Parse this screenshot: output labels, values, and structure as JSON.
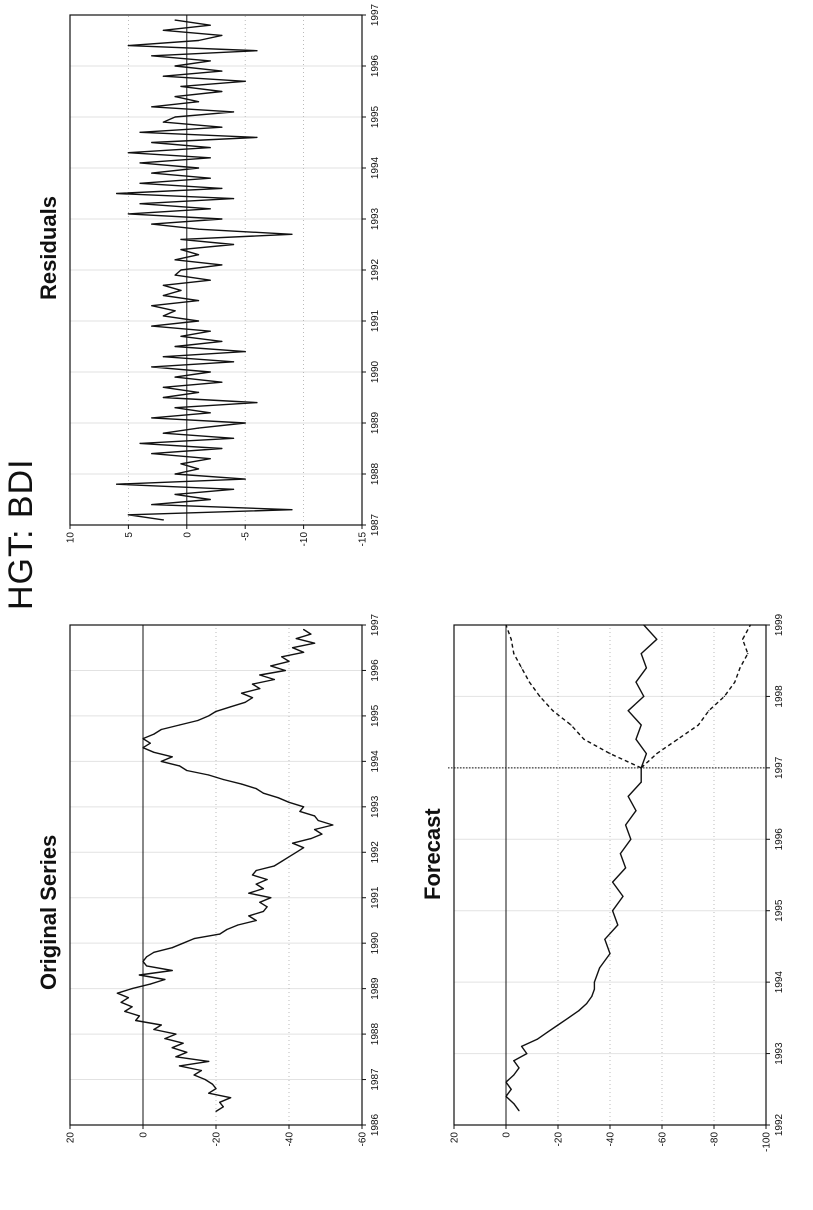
{
  "page": {
    "figure_title": "HGT: BDI",
    "orientation": "rotated -90 degrees"
  },
  "chart_data": [
    {
      "id": "original",
      "type": "line",
      "title": "Original Series",
      "ylim": [
        -60,
        20
      ],
      "yticks": [
        -60,
        -40,
        -20,
        0,
        20
      ],
      "ytick_labels": [
        "-60",
        "-40",
        "-20",
        "0",
        "20"
      ],
      "xlim": [
        1986,
        1997
      ],
      "xticks": [
        1986,
        1987,
        1988,
        1989,
        1990,
        1991,
        1992,
        1993,
        1994,
        1995,
        1996,
        1997
      ],
      "xtick_labels": [
        "1986",
        "1987",
        "1988",
        "1989",
        "1990",
        "1991",
        "1992",
        "1993",
        "1994",
        "1995",
        "1996",
        "1997"
      ],
      "hline": 0,
      "series": [
        {
          "color": "#111111",
          "dash": "",
          "x": [
            1986.3,
            1986.4,
            1986.5,
            1986.6,
            1986.7,
            1986.8,
            1986.9,
            1987.0,
            1987.1,
            1987.2,
            1987.3,
            1987.4,
            1987.5,
            1987.6,
            1987.7,
            1987.8,
            1987.9,
            1988.0,
            1988.1,
            1988.2,
            1988.3,
            1988.4,
            1988.5,
            1988.6,
            1988.7,
            1988.8,
            1988.9,
            1989.0,
            1989.1,
            1989.2,
            1989.3,
            1989.4,
            1989.5,
            1989.6,
            1989.7,
            1989.8,
            1989.9,
            1990.0,
            1990.1,
            1990.2,
            1990.3,
            1990.4,
            1990.5,
            1990.6,
            1990.7,
            1990.8,
            1990.9,
            1991.0,
            1991.1,
            1991.2,
            1991.3,
            1991.4,
            1991.5,
            1991.6,
            1991.7,
            1991.8,
            1991.9,
            1992.0,
            1992.1,
            1992.2,
            1992.3,
            1992.4,
            1992.5,
            1992.6,
            1992.7,
            1992.8,
            1992.9,
            1993.0,
            1993.1,
            1993.2,
            1993.3,
            1993.4,
            1993.5,
            1993.6,
            1993.7,
            1993.8,
            1993.9,
            1994.0,
            1994.1,
            1994.2,
            1994.3,
            1994.4,
            1994.5,
            1994.6,
            1994.7,
            1994.8,
            1994.9,
            1995.0,
            1995.1,
            1995.2,
            1995.3,
            1995.4,
            1995.5,
            1995.6,
            1995.7,
            1995.8,
            1995.9,
            1996.0,
            1996.1,
            1996.2,
            1996.3,
            1996.4,
            1996.5,
            1996.6,
            1996.7,
            1996.8,
            1996.9
          ],
          "y": [
            -20,
            -22,
            -21,
            -24,
            -18,
            -20,
            -19,
            -17,
            -14,
            -16,
            -10,
            -18,
            -9,
            -12,
            -8,
            -11,
            -6,
            -9,
            -3,
            -5,
            2,
            1,
            5,
            3,
            6,
            4,
            7,
            3,
            -2,
            -6,
            1,
            -8,
            -1,
            0,
            -1,
            -3,
            -8,
            -11,
            -14,
            -21,
            -23,
            -26,
            -31,
            -29,
            -33,
            -34,
            -32,
            -35,
            -29,
            -33,
            -31,
            -34,
            -30,
            -31,
            -36,
            -38,
            -40,
            -42,
            -44,
            -41,
            -46,
            -49,
            -47,
            -52,
            -48,
            -47,
            -43,
            -44,
            -40,
            -37,
            -33,
            -31,
            -27,
            -22,
            -18,
            -12,
            -10,
            -5,
            -8,
            -3,
            0,
            -2,
            0,
            -3,
            -5,
            -10,
            -15,
            -18,
            -20,
            -24,
            -28,
            -30,
            -27,
            -32,
            -30,
            -36,
            -32,
            -39,
            -35,
            -40,
            -38,
            -44,
            -41,
            -47,
            -42,
            -46,
            -44
          ]
        }
      ]
    },
    {
      "id": "residuals",
      "type": "line",
      "title": "Residuals",
      "ylim": [
        -15,
        10
      ],
      "yticks": [
        -15,
        -10,
        -5,
        0,
        5,
        10
      ],
      "ytick_labels": [
        "-15",
        "-10",
        "-5",
        "0",
        "5",
        "10"
      ],
      "xlim": [
        1987,
        1997
      ],
      "xticks": [
        1987,
        1988,
        1989,
        1990,
        1991,
        1992,
        1993,
        1994,
        1995,
        1996,
        1997
      ],
      "xtick_labels": [
        "1987",
        "1988",
        "1989",
        "1990",
        "1991",
        "1992",
        "1993",
        "1994",
        "1995",
        "1996",
        "1997"
      ],
      "hline": 0,
      "series": [
        {
          "color": "#111111",
          "dash": "",
          "x": [
            1987.1,
            1987.2,
            1987.3,
            1987.4,
            1987.5,
            1987.6,
            1987.7,
            1987.8,
            1987.9,
            1988.0,
            1988.1,
            1988.2,
            1988.3,
            1988.4,
            1988.5,
            1988.6,
            1988.7,
            1988.8,
            1988.9,
            1989.0,
            1989.1,
            1989.2,
            1989.3,
            1989.4,
            1989.5,
            1989.6,
            1989.7,
            1989.8,
            1989.9,
            1990.0,
            1990.1,
            1990.2,
            1990.3,
            1990.4,
            1990.5,
            1990.6,
            1990.7,
            1990.8,
            1990.9,
            1991.0,
            1991.1,
            1991.2,
            1991.3,
            1991.4,
            1991.5,
            1991.6,
            1991.7,
            1991.8,
            1991.9,
            1992.0,
            1992.1,
            1992.2,
            1992.3,
            1992.4,
            1992.5,
            1992.6,
            1992.7,
            1992.8,
            1992.9,
            1993.0,
            1993.1,
            1993.2,
            1993.3,
            1993.4,
            1993.5,
            1993.6,
            1993.7,
            1993.8,
            1993.9,
            1994.0,
            1994.1,
            1994.2,
            1994.3,
            1994.4,
            1994.5,
            1994.6,
            1994.7,
            1994.8,
            1994.9,
            1995.0,
            1995.1,
            1995.2,
            1995.3,
            1995.4,
            1995.5,
            1995.6,
            1995.7,
            1995.8,
            1995.9,
            1996.0,
            1996.1,
            1996.2,
            1996.3,
            1996.4,
            1996.5,
            1996.6,
            1996.7,
            1996.8,
            1996.9
          ],
          "y": [
            2,
            5,
            -9,
            3,
            -2,
            1,
            -4,
            6,
            -5,
            1,
            -1,
            0.5,
            -2,
            3,
            -3,
            4,
            -4,
            2,
            -1,
            -5,
            3,
            -2,
            1,
            -6,
            2,
            -1,
            2,
            -3,
            1,
            -2,
            3,
            -4,
            2,
            -5,
            1,
            -3,
            0.5,
            -2,
            3,
            -1,
            2,
            1,
            3,
            -1,
            2,
            0.5,
            2,
            -2,
            1,
            0.5,
            -3,
            1,
            -1,
            0.5,
            -4,
            0.5,
            -9,
            -1,
            3,
            -3,
            5,
            -2,
            4,
            -4,
            6,
            -3,
            4,
            -2,
            3,
            -1,
            4,
            -2,
            5,
            -2,
            3,
            -6,
            4,
            -3,
            2,
            1,
            -4,
            3,
            -1,
            1,
            -3,
            0.5,
            -5,
            2,
            -3,
            1,
            -2,
            3,
            -6,
            5,
            -1,
            -3,
            2,
            -2,
            1
          ]
        }
      ]
    },
    {
      "id": "forecast",
      "type": "line",
      "title": "Forecast",
      "ylim": [
        -100,
        20
      ],
      "yticks": [
        -100,
        -80,
        -60,
        -40,
        -20,
        0,
        20
      ],
      "ytick_labels": [
        "-100",
        "-80",
        "-60",
        "-40",
        "-20",
        "0",
        "20"
      ],
      "xlim": [
        1992,
        1999
      ],
      "xticks": [
        1992,
        1993,
        1994,
        1995,
        1996,
        1997,
        1998,
        1999
      ],
      "xtick_labels": [
        "1992",
        "1993",
        "1994",
        "1995",
        "1996",
        "1997",
        "1998",
        "1999"
      ],
      "hline": 0,
      "vline": 1997,
      "series": [
        {
          "color": "#111111",
          "dash": "",
          "x": [
            1992.2,
            1992.3,
            1992.4,
            1992.5,
            1992.6,
            1992.7,
            1992.8,
            1992.9,
            1993.0,
            1993.1,
            1993.2,
            1993.3,
            1993.4,
            1993.5,
            1993.6,
            1993.7,
            1993.8,
            1993.9,
            1994.0,
            1994.2,
            1994.4,
            1994.6,
            1994.8,
            1995.0,
            1995.2,
            1995.4,
            1995.6,
            1995.8,
            1996.0,
            1996.2,
            1996.4,
            1996.6,
            1996.8,
            1997.0,
            1997.2,
            1997.4,
            1997.6,
            1997.8,
            1998.0,
            1998.2,
            1998.4,
            1998.6,
            1998.8,
            1999.0
          ],
          "y": [
            -5,
            -3,
            0,
            -2,
            0,
            -3,
            -5,
            -3,
            -8,
            -6,
            -12,
            -16,
            -20,
            -24,
            -28,
            -31,
            -33,
            -34,
            -34,
            -36,
            -40,
            -38,
            -43,
            -41,
            -45,
            -41,
            -46,
            -44,
            -48,
            -46,
            -50,
            -47,
            -52,
            -52,
            -54,
            -50,
            -52,
            -47,
            -53,
            -50,
            -54,
            -52,
            -58,
            -53
          ]
        },
        {
          "color": "#111111",
          "dash": "4,3",
          "x": [
            1997.0,
            1997.2,
            1997.4,
            1997.6,
            1997.8,
            1998.0,
            1998.2,
            1998.4,
            1998.6,
            1998.8,
            1999.0
          ],
          "y": [
            -52,
            -40,
            -30,
            -25,
            -18,
            -13,
            -9,
            -6,
            -3,
            -2,
            0
          ]
        },
        {
          "color": "#111111",
          "dash": "4,3",
          "x": [
            1997.0,
            1997.2,
            1997.4,
            1997.6,
            1997.8,
            1998.0,
            1998.2,
            1998.4,
            1998.6,
            1998.8,
            1999.0
          ],
          "y": [
            -52,
            -58,
            -66,
            -74,
            -78,
            -84,
            -88,
            -90,
            -93,
            -91,
            -94
          ]
        }
      ]
    }
  ]
}
